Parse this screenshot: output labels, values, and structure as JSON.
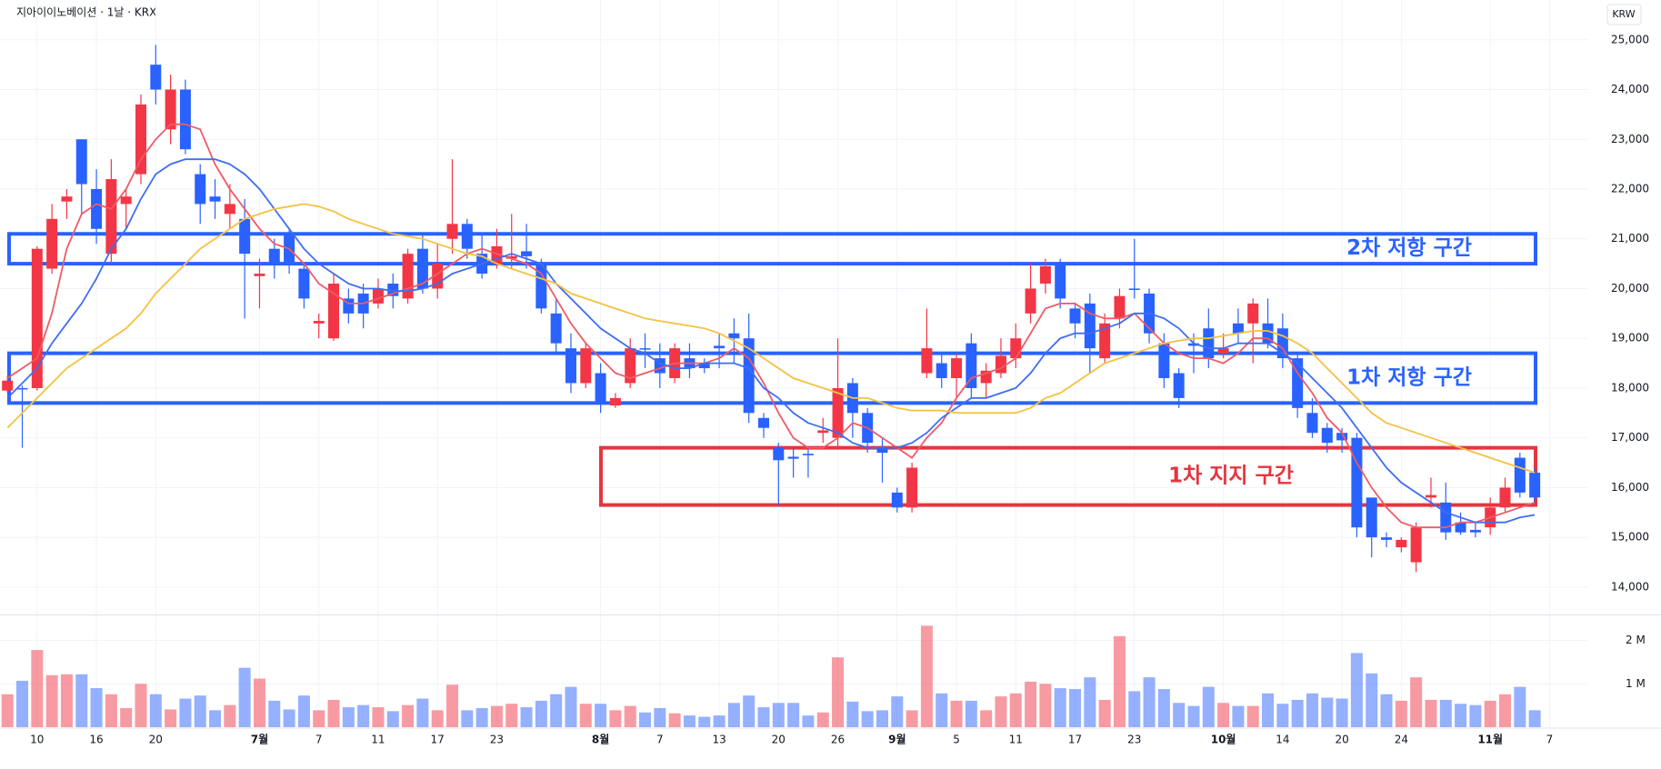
{
  "chart_data": {
    "type": "candlestick",
    "title": "지아이이노베이션 · 1날 · KRX",
    "currency": "KRW",
    "categories": [
      null,
      null,
      "10",
      null,
      null,
      null,
      "16",
      null,
      null,
      null,
      "20",
      null,
      null,
      null,
      null,
      null,
      null,
      "7월",
      null,
      null,
      null,
      "7",
      null,
      null,
      null,
      "11",
      null,
      null,
      null,
      "17",
      null,
      null,
      null,
      "23",
      null,
      null,
      null,
      null,
      null,
      null,
      "8월",
      null,
      null,
      null,
      "7",
      null,
      null,
      null,
      "13",
      null,
      null,
      null,
      "20",
      null,
      null,
      null,
      "26",
      null,
      null,
      null,
      "9월",
      null,
      null,
      null,
      "5",
      null,
      null,
      null,
      "11",
      null,
      null,
      null,
      "17",
      null,
      null,
      null,
      "23",
      null,
      null,
      null,
      null,
      null,
      "10월",
      null,
      null,
      null,
      "14",
      null,
      null,
      null,
      "20",
      null,
      null,
      null,
      "24",
      null,
      null,
      null,
      null,
      null,
      "11월",
      null,
      null,
      null,
      "7"
    ],
    "open": [
      17950,
      18000,
      18000,
      20400,
      21750,
      23000,
      22000,
      20700,
      21700,
      22300,
      24500,
      23200,
      24000,
      22300,
      21850,
      21500,
      21400,
      20250,
      20800,
      21100,
      20400,
      19300,
      19000,
      19800,
      19900,
      19700,
      20100,
      19800,
      20800,
      20000,
      21000,
      21300,
      20700,
      20500,
      20600,
      20750,
      20500,
      19500,
      18800,
      18100,
      18300,
      17650,
      18100,
      18800,
      18600,
      18200,
      18600,
      18500,
      18850,
      19100,
      19000,
      17400,
      16800,
      16620,
      16680,
      17100,
      17000,
      18100,
      17500,
      16800,
      15900,
      15600,
      18300,
      18500,
      18200,
      18900,
      18100,
      18300,
      18600,
      19500,
      20100,
      20500,
      19600,
      19700,
      18600,
      19400,
      20000,
      19900,
      18900,
      18300,
      18900,
      19200,
      18700,
      19300,
      19300,
      19300,
      19200,
      18600,
      17500,
      17200,
      17100,
      17000,
      15800,
      15000,
      14800,
      14500,
      15800,
      15700,
      15300,
      15150,
      15200,
      15600,
      16600,
      16300,
      null
    ],
    "high": [
      18250,
      18050,
      20850,
      21700,
      22000,
      23000,
      22400,
      22600,
      22000,
      23900,
      24900,
      24300,
      24200,
      22500,
      22200,
      22100,
      21800,
      20600,
      21000,
      21200,
      20500,
      19500,
      20300,
      20000,
      20100,
      20200,
      20300,
      20800,
      21100,
      20900,
      22600,
      21400,
      21100,
      21200,
      21500,
      21300,
      20600,
      19800,
      19100,
      18900,
      18500,
      17900,
      19000,
      19100,
      18900,
      18900,
      18900,
      18600,
      19100,
      19400,
      19500,
      17500,
      16900,
      16800,
      16800,
      17400,
      19000,
      18200,
      17600,
      17000,
      16000,
      16500,
      19600,
      18700,
      18700,
      19100,
      18500,
      19000,
      19300,
      20500,
      20600,
      20600,
      19700,
      19900,
      19500,
      20000,
      21000,
      20000,
      19100,
      18400,
      19100,
      19600,
      19100,
      19600,
      19800,
      19800,
      19500,
      18700,
      17800,
      17300,
      17200,
      17100,
      15800,
      15100,
      15000,
      15300,
      16200,
      16100,
      15500,
      15300,
      15800,
      16200,
      16700,
      16400,
      null
    ],
    "low": [
      17900,
      16800,
      17950,
      20300,
      21400,
      21500,
      20900,
      20500,
      21200,
      22100,
      23700,
      22900,
      22700,
      21300,
      21400,
      21200,
      19400,
      19600,
      20200,
      20300,
      19600,
      19000,
      18950,
      19300,
      19200,
      19600,
      19600,
      19700,
      19900,
      19800,
      20700,
      20600,
      20200,
      20400,
      20400,
      20400,
      19500,
      18700,
      17900,
      18000,
      17500,
      17600,
      18000,
      18400,
      18000,
      18100,
      18200,
      18300,
      18400,
      18500,
      17300,
      17000,
      15650,
      16200,
      16200,
      16900,
      16800,
      17000,
      16700,
      16100,
      15500,
      15500,
      18200,
      18000,
      17800,
      17800,
      17800,
      18200,
      18400,
      19300,
      19900,
      19600,
      19000,
      18300,
      18500,
      19200,
      19800,
      18900,
      18000,
      17600,
      18300,
      18400,
      18600,
      18900,
      18500,
      18800,
      18400,
      17400,
      17000,
      16700,
      16700,
      15000,
      14600,
      14800,
      14700,
      14300,
      15600,
      14950,
      15050,
      15000,
      15050,
      15500,
      15800,
      15700,
      null
    ],
    "close": [
      18150,
      17980,
      20800,
      21400,
      21850,
      22100,
      21200,
      22200,
      21850,
      23700,
      24000,
      24000,
      22800,
      21700,
      21750,
      21700,
      20700,
      20300,
      20500,
      20500,
      19800,
      19350,
      20100,
      19500,
      19500,
      20000,
      19850,
      20700,
      20000,
      20500,
      21300,
      20800,
      20300,
      20850,
      20650,
      20650,
      19600,
      18900,
      18100,
      18800,
      17700,
      17800,
      18800,
      18780,
      18300,
      18800,
      18400,
      18400,
      18800,
      19000,
      17500,
      17200,
      16550,
      16580,
      16650,
      17150,
      18000,
      17500,
      16900,
      16700,
      15600,
      16400,
      18800,
      18200,
      18600,
      18000,
      18350,
      18650,
      19000,
      20000,
      20450,
      19800,
      19300,
      18800,
      19300,
      19850,
      19980,
      19100,
      18200,
      17800,
      18850,
      18600,
      18800,
      19100,
      19700,
      18900,
      18600,
      17600,
      17100,
      16900,
      16950,
      15200,
      15000,
      14950,
      14950,
      15200,
      15850,
      15100,
      15100,
      15100,
      15600,
      16000,
      15900,
      15800,
      null
    ],
    "volume": [
      760000,
      1070000,
      1780000,
      1200000,
      1220000,
      1220000,
      900000,
      760000,
      440000,
      1000000,
      760000,
      410000,
      660000,
      730000,
      390000,
      510000,
      1370000,
      1120000,
      610000,
      410000,
      730000,
      390000,
      630000,
      460000,
      510000,
      460000,
      370000,
      510000,
      660000,
      390000,
      980000,
      390000,
      440000,
      490000,
      540000,
      460000,
      610000,
      760000,
      930000,
      540000,
      540000,
      390000,
      490000,
      340000,
      440000,
      320000,
      270000,
      240000,
      270000,
      560000,
      730000,
      460000,
      560000,
      560000,
      270000,
      340000,
      1610000,
      590000,
      370000,
      390000,
      710000,
      390000,
      2340000,
      780000,
      610000,
      610000,
      390000,
      710000,
      780000,
      1050000,
      1000000,
      900000,
      880000,
      1150000,
      630000,
      2100000,
      830000,
      1150000,
      880000,
      560000,
      490000,
      930000,
      560000,
      490000,
      490000,
      780000,
      540000,
      630000,
      780000,
      680000,
      660000,
      1710000,
      1240000,
      760000,
      610000,
      1150000,
      630000,
      630000,
      540000,
      510000,
      610000,
      760000,
      930000,
      390000,
      null
    ],
    "up_color": "#f23645",
    "down_color": "#2962ff",
    "ylim": [
      13450,
      25800
    ],
    "yticks": [
      {
        "value": 14000,
        "label": "14,000"
      },
      {
        "value": 15000,
        "label": "15,000"
      },
      {
        "value": 16000,
        "label": "16,000"
      },
      {
        "value": 17000,
        "label": "17,000"
      },
      {
        "value": 18000,
        "label": "18,000"
      },
      {
        "value": 19000,
        "label": "19,000"
      },
      {
        "value": 20000,
        "label": "20,000"
      },
      {
        "value": 21000,
        "label": "21,000"
      },
      {
        "value": 22000,
        "label": "22,000"
      },
      {
        "value": 23000,
        "label": "23,000"
      },
      {
        "value": 24000,
        "label": "24,000"
      },
      {
        "value": 25000,
        "label": "25,000"
      }
    ],
    "volume_ylim": [
      0,
      2600000
    ],
    "volume_yticks": [
      {
        "value": 1000000,
        "label": "1 M"
      },
      {
        "value": 2000000,
        "label": "2 M"
      }
    ],
    "grid": true,
    "moving_averages": [
      {
        "color": "#ef5a66",
        "values": [
          18200,
          18400,
          18600,
          19500,
          20800,
          21500,
          21700,
          21600,
          22000,
          22600,
          23000,
          23300,
          23300,
          23200,
          22500,
          22000,
          21600,
          21200,
          20900,
          20800,
          20500,
          20100,
          19900,
          19700,
          19700,
          19800,
          19900,
          20000,
          20100,
          20300,
          20500,
          20700,
          20800,
          20700,
          20600,
          20500,
          20300,
          19800,
          19300,
          18900,
          18600,
          18300,
          18200,
          18300,
          18400,
          18500,
          18500,
          18500,
          18600,
          18800,
          18600,
          18100,
          17500,
          17000,
          16800,
          16800,
          17000,
          17300,
          17200,
          17000,
          16800,
          16600,
          17000,
          17300,
          17800,
          18200,
          18300,
          18400,
          18600,
          19100,
          19600,
          19700,
          19700,
          19500,
          19400,
          19400,
          19500,
          19200,
          18900,
          18700,
          18600,
          18600,
          18500,
          18700,
          19000,
          19000,
          18800,
          18300,
          17900,
          17400,
          17100,
          16500,
          16000,
          15600,
          15300,
          15200,
          15200,
          15200,
          15300,
          15300,
          15400,
          15500,
          15600,
          15700,
          null
        ]
      },
      {
        "color": "#3d6df2",
        "values": [
          17800,
          18100,
          18400,
          18900,
          19300,
          19700,
          20200,
          20800,
          21200,
          21800,
          22300,
          22500,
          22600,
          22600,
          22600,
          22500,
          22300,
          22000,
          21600,
          21200,
          20800,
          20500,
          20300,
          20100,
          20000,
          20000,
          19950,
          19950,
          20000,
          20100,
          20300,
          20400,
          20500,
          20600,
          20700,
          20600,
          20500,
          20100,
          19800,
          19500,
          19200,
          19000,
          18800,
          18700,
          18500,
          18400,
          18400,
          18500,
          18500,
          18500,
          18400,
          18000,
          17800,
          17500,
          17300,
          17200,
          17100,
          16900,
          16800,
          16800,
          16800,
          16900,
          17100,
          17400,
          17600,
          17800,
          17800,
          17900,
          18000,
          18300,
          18700,
          19000,
          19100,
          19100,
          19200,
          19300,
          19500,
          19500,
          19400,
          19200,
          18900,
          18800,
          18800,
          18900,
          18900,
          18900,
          18700,
          18500,
          18200,
          17900,
          17600,
          17200,
          16800,
          16400,
          16100,
          15900,
          15700,
          15500,
          15400,
          15300,
          15300,
          15300,
          15400,
          15450,
          null
        ]
      },
      {
        "color": "#f5c142",
        "values": [
          17200,
          17500,
          17800,
          18100,
          18400,
          18600,
          18800,
          19000,
          19200,
          19500,
          19900,
          20200,
          20500,
          20800,
          21000,
          21200,
          21400,
          21500,
          21600,
          21650,
          21700,
          21650,
          21550,
          21400,
          21300,
          21200,
          21100,
          21050,
          21000,
          20900,
          20800,
          20700,
          20650,
          20500,
          20400,
          20300,
          20200,
          20100,
          19900,
          19800,
          19700,
          19600,
          19500,
          19400,
          19350,
          19300,
          19250,
          19200,
          19100,
          18950,
          18800,
          18600,
          18400,
          18200,
          18100,
          18000,
          17900,
          17800,
          17800,
          17700,
          17600,
          17550,
          17550,
          17550,
          17500,
          17500,
          17500,
          17500,
          17500,
          17600,
          17800,
          17900,
          18100,
          18300,
          18500,
          18600,
          18700,
          18800,
          18900,
          18950,
          19000,
          19000,
          19050,
          19100,
          19150,
          19150,
          19050,
          18900,
          18700,
          18400,
          18100,
          17800,
          17500,
          17300,
          17200,
          17100,
          17000,
          16900,
          16800,
          16700,
          16600,
          16500,
          16400,
          16300,
          null
        ]
      }
    ],
    "zones": [
      {
        "label": "2차 저항 구간",
        "top": 21100,
        "bottom": 20500,
        "color": "#2962ff"
      },
      {
        "label": "1차 저항 구간",
        "top": 18700,
        "bottom": 17700,
        "color": "#2962ff"
      },
      {
        "label": "1차 지지 구간",
        "top": 16800,
        "bottom": 15650,
        "color": "#e5353f"
      }
    ]
  }
}
